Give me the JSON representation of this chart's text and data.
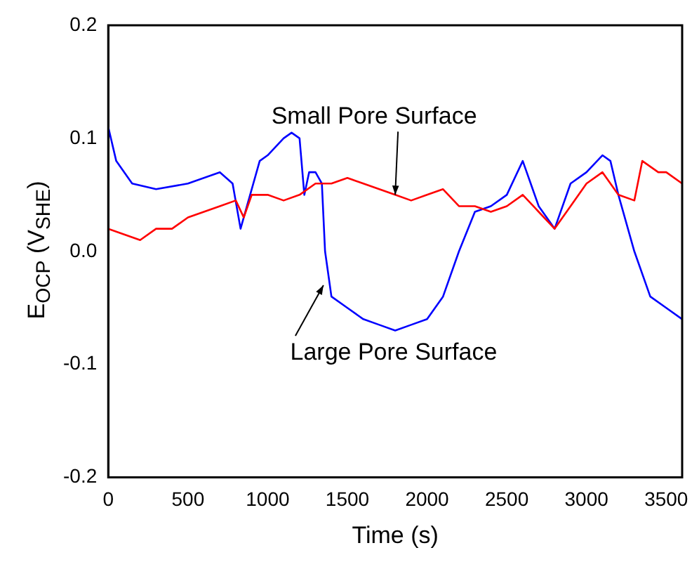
{
  "chart_data": {
    "type": "line",
    "xlabel": "Time (s)",
    "ylabel": "E$_{OCP}$ (V$_{SHE}$)",
    "xlim": [
      0,
      3600
    ],
    "xticks": [
      0,
      500,
      1000,
      1500,
      2000,
      2500,
      3000,
      3500
    ],
    "ylim": [
      -0.2,
      0.2
    ],
    "yticks": [
      {
        "value": -0.2,
        "label": "-0.2"
      },
      {
        "value": -0.1,
        "label": "-0.1"
      },
      {
        "value": 0,
        "label": "0.0"
      },
      {
        "value": 0.1,
        "label": "0.1"
      },
      {
        "value": 0.2,
        "label": "0.2"
      }
    ],
    "grid": false,
    "legend": false,
    "series": [
      {
        "color": "#ff0000",
        "x": [
          0,
          100,
          200,
          300,
          400,
          500,
          600,
          700,
          800,
          850,
          900,
          1000,
          1100,
          1200,
          1300,
          1400,
          1500,
          1600,
          1700,
          1800,
          1900,
          2000,
          2100,
          2200,
          2300,
          2400,
          2500,
          2600,
          2700,
          2800,
          2900,
          3000,
          3100,
          3200,
          3300,
          3350,
          3450,
          3500,
          3600
        ],
        "values": [
          0.02,
          0.015,
          0.01,
          0.02,
          0.02,
          0.03,
          0.035,
          0.04,
          0.045,
          0.03,
          0.05,
          0.05,
          0.045,
          0.05,
          0.06,
          0.06,
          0.065,
          0.06,
          0.055,
          0.05,
          0.045,
          0.05,
          0.055,
          0.04,
          0.04,
          0.035,
          0.04,
          0.05,
          0.035,
          0.02,
          0.04,
          0.06,
          0.07,
          0.05,
          0.045,
          0.08,
          0.07,
          0.07,
          0.06
        ]
      },
      {
        "color": "#0000ff",
        "x": [
          0,
          50,
          150,
          300,
          500,
          700,
          780,
          830,
          870,
          950,
          1000,
          1100,
          1150,
          1200,
          1230,
          1260,
          1300,
          1340,
          1360,
          1400,
          1500,
          1600,
          1700,
          1800,
          1900,
          2000,
          2100,
          2200,
          2300,
          2400,
          2500,
          2600,
          2650,
          2700,
          2800,
          2900,
          3000,
          3100,
          3150,
          3200,
          3300,
          3400,
          3500,
          3600
        ],
        "values": [
          0.11,
          0.08,
          0.06,
          0.055,
          0.06,
          0.07,
          0.06,
          0.02,
          0.04,
          0.08,
          0.085,
          0.1,
          0.105,
          0.1,
          0.05,
          0.07,
          0.07,
          0.06,
          0.0,
          -0.04,
          -0.05,
          -0.06,
          -0.065,
          -0.07,
          -0.065,
          -0.06,
          -0.04,
          0.0,
          0.035,
          0.04,
          0.05,
          0.08,
          0.06,
          0.04,
          0.02,
          0.06,
          0.07,
          0.085,
          0.08,
          0.05,
          0.0,
          -0.04,
          -0.05,
          -0.06
        ]
      }
    ],
    "annotations": [
      {
        "text": "Small Pore Surface",
        "x": 1800,
        "y": 0.05
      },
      {
        "text": "Large Pore Surface",
        "x": 1350,
        "y": -0.03
      }
    ]
  }
}
